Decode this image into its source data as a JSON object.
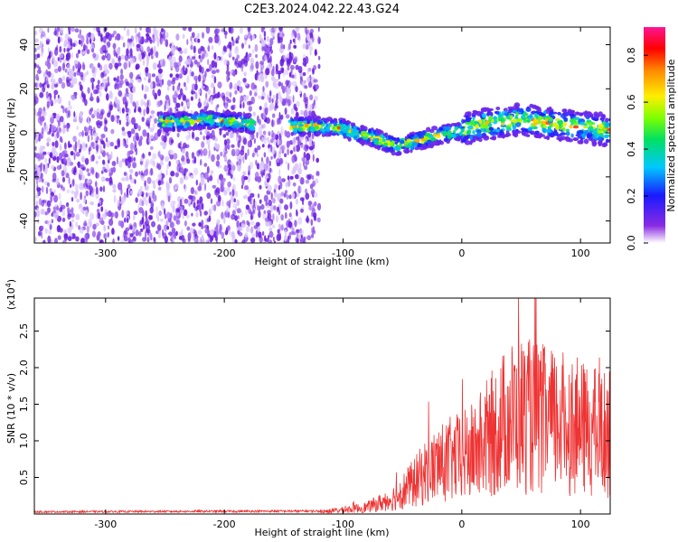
{
  "title": "C2E3.2024.042.22.43.G24",
  "chart_data": [
    {
      "type": "heatmap",
      "name": "spectrogram",
      "xlabel": "Height of straight line (km)",
      "ylabel": "Frequency (Hz)",
      "xlim": [
        -360,
        125
      ],
      "ylim": [
        -50,
        48
      ],
      "xticks": [
        -300,
        -200,
        -100,
        0,
        100
      ],
      "yticks": [
        -40,
        -20,
        0,
        20,
        40
      ],
      "noise_region_km": [
        -360,
        -120
      ],
      "signal_track": {
        "x": [
          -255,
          -235,
          -215,
          -195,
          -175,
          -140,
          -120,
          -100,
          -85,
          -70,
          -55,
          -40,
          -25,
          -10,
          5,
          20,
          35,
          50,
          65,
          80,
          95,
          110,
          125
        ],
        "y": [
          5,
          5,
          6,
          5,
          4,
          3,
          3,
          2,
          -1,
          -3,
          -6,
          -4,
          -2,
          0,
          2,
          4,
          5,
          6,
          5,
          4,
          3,
          2,
          1
        ]
      },
      "colorbar": {
        "label": "Normalized spectral amplitude",
        "range": [
          0,
          0.92
        ],
        "ticks": [
          0.0,
          0.2,
          0.4,
          0.6,
          0.8
        ]
      }
    },
    {
      "type": "line",
      "name": "snr",
      "xlabel": "Height of straight line (km)",
      "ylabel": "SNR (10 * v/v)",
      "scale_label": "(x10",
      "scale_exp": "4",
      "scale_close": ")",
      "color": "#ee3333",
      "xlim": [
        -360,
        125
      ],
      "ylim": [
        0,
        2.95
      ],
      "xticks": [
        -300,
        -200,
        -100,
        0,
        100
      ],
      "yticks": [
        0.5,
        1.0,
        1.5,
        2.0,
        2.5
      ],
      "envelope": {
        "x": [
          -360,
          -120,
          -100,
          -80,
          -60,
          -40,
          -30,
          -20,
          -10,
          0,
          10,
          20,
          30,
          40,
          50,
          60,
          70,
          80,
          90,
          100,
          110,
          125
        ],
        "y": [
          0.03,
          0.04,
          0.07,
          0.12,
          0.25,
          0.55,
          0.75,
          0.85,
          0.95,
          1.0,
          1.1,
          1.3,
          1.5,
          1.7,
          1.75,
          1.7,
          1.65,
          1.6,
          1.6,
          1.5,
          1.45,
          1.4
        ]
      }
    }
  ]
}
